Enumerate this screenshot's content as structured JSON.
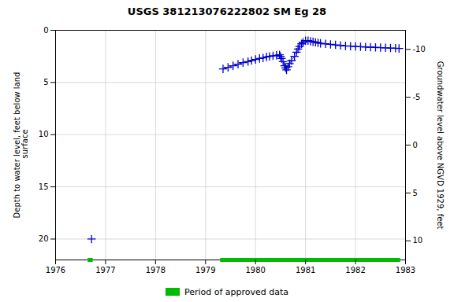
{
  "chart_data": {
    "type": "line",
    "title": "USGS 381213076222802 SM Eg  28",
    "ylabel": "Depth to water level, feet below land\n surface",
    "y2label": "Groundwater level above NGVD 1929, feet",
    "xlim": [
      1976,
      1983
    ],
    "xticks": [
      1976,
      1977,
      1978,
      1979,
      1980,
      1981,
      1982,
      1983
    ],
    "ylim": [
      22,
      0
    ],
    "yticks": [
      0,
      5,
      10,
      15,
      20
    ],
    "y2lim": [
      12,
      -12
    ],
    "y2ticks": [
      10,
      5,
      0,
      -5,
      -10
    ],
    "grid": true,
    "legend": "bottom",
    "series": [
      {
        "color": "#0000cc",
        "marker": "plus",
        "line_style": "none",
        "x": [
          1976.72
        ],
        "values": [
          20.0
        ]
      },
      {
        "color": "#0000cc",
        "marker": "plus",
        "line_style": "dashed",
        "x": [
          1979.35,
          1979.45,
          1979.55,
          1979.65,
          1979.75,
          1979.85,
          1979.92,
          1980.0,
          1980.08,
          1980.15,
          1980.22,
          1980.28,
          1980.35,
          1980.42,
          1980.48,
          1980.5,
          1980.52,
          1980.55,
          1980.58,
          1980.6,
          1980.62,
          1980.65,
          1980.68,
          1980.72,
          1980.78,
          1980.82,
          1980.85,
          1980.88,
          1980.92,
          1980.95,
          1981.0,
          1981.05,
          1981.1,
          1981.15,
          1981.2,
          1981.25,
          1981.3,
          1981.4,
          1981.5,
          1981.6,
          1981.7,
          1981.8,
          1981.9,
          1982.0,
          1982.1,
          1982.2,
          1982.3,
          1982.4,
          1982.5,
          1982.6,
          1982.7,
          1982.8,
          1982.87
        ],
        "values": [
          3.7,
          3.55,
          3.4,
          3.25,
          3.1,
          3.0,
          2.9,
          2.8,
          2.7,
          2.65,
          2.55,
          2.5,
          2.45,
          2.4,
          2.35,
          2.5,
          2.7,
          3.0,
          3.4,
          3.6,
          3.8,
          3.5,
          3.2,
          2.9,
          2.5,
          2.1,
          1.8,
          1.55,
          1.3,
          1.15,
          1.0,
          1.0,
          1.05,
          1.1,
          1.15,
          1.2,
          1.25,
          1.3,
          1.35,
          1.4,
          1.45,
          1.5,
          1.52,
          1.55,
          1.58,
          1.6,
          1.62,
          1.64,
          1.66,
          1.68,
          1.7,
          1.72,
          1.74
        ]
      }
    ],
    "bands": {
      "label": "Period of approved data",
      "color": "#00bb00",
      "segments": [
        [
          1976.65,
          1976.75
        ],
        [
          1979.3,
          1982.9
        ]
      ]
    }
  }
}
